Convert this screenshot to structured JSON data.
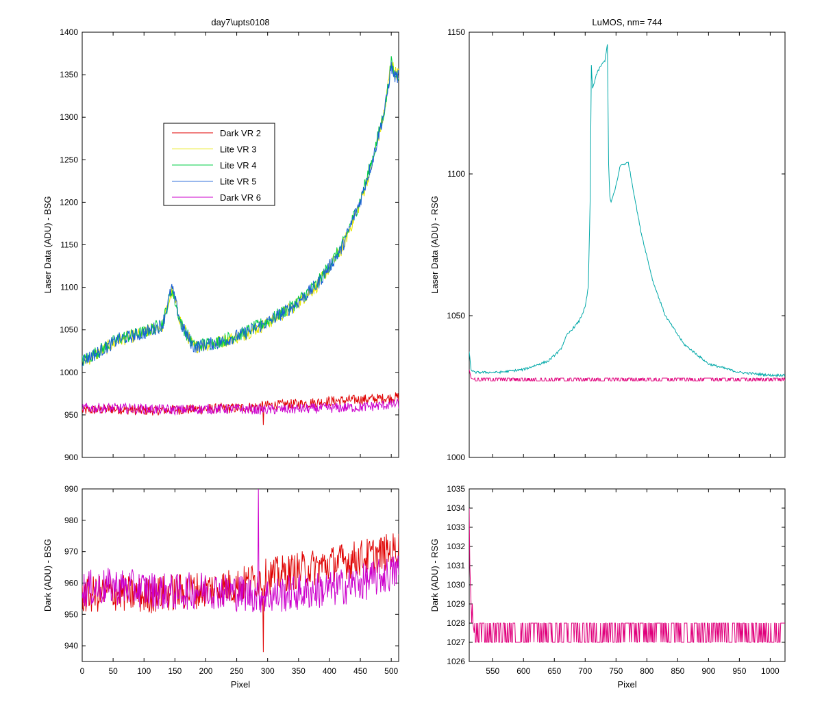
{
  "chart_data": [
    {
      "type": "line",
      "title": "day7\\upts0108",
      "xlabel": "",
      "ylabel": "Laser Data (ADU) - BSG",
      "xlim": [
        0,
        512
      ],
      "ylim": [
        900,
        1400
      ],
      "xticks": [],
      "yticks": [
        900,
        950,
        1000,
        1050,
        1100,
        1150,
        1200,
        1250,
        1300,
        1350,
        1400
      ],
      "legend": {
        "placement": "upper-left-inset",
        "entries": [
          "Dark VR 2",
          "Lite VR 3",
          "Lite VR 4",
          "Lite VR 5",
          "Dark VR 6"
        ]
      },
      "series": [
        {
          "name": "Dark VR 2",
          "color": "#e00000",
          "x": [
            0,
            50,
            100,
            150,
            200,
            250,
            300,
            350,
            400,
            450,
            500,
            512
          ],
          "y": [
            955,
            957,
            955,
            956,
            957,
            958,
            961,
            963,
            966,
            968,
            970,
            971
          ]
        },
        {
          "name": "Lite VR 3",
          "color": "#e6e600",
          "x": [
            0,
            20,
            60,
            100,
            130,
            145,
            160,
            180,
            220,
            260,
            300,
            340,
            380,
            420,
            450,
            470,
            490,
            500,
            505
          ],
          "y": [
            1012,
            1020,
            1038,
            1046,
            1055,
            1096,
            1058,
            1030,
            1035,
            1044,
            1058,
            1076,
            1102,
            1145,
            1200,
            1248,
            1310,
            1368,
            1352
          ]
        },
        {
          "name": "Lite VR 4",
          "color": "#00cc44",
          "x": [
            0,
            20,
            60,
            100,
            130,
            145,
            160,
            180,
            220,
            260,
            300,
            340,
            380,
            420,
            450,
            470,
            490,
            500,
            505
          ],
          "y": [
            1013,
            1022,
            1040,
            1047,
            1057,
            1098,
            1057,
            1031,
            1036,
            1046,
            1060,
            1078,
            1104,
            1148,
            1203,
            1252,
            1312,
            1364,
            1350
          ]
        },
        {
          "name": "Lite VR 5",
          "color": "#1a5fd6",
          "x": [
            0,
            20,
            60,
            100,
            130,
            145,
            160,
            180,
            220,
            260,
            300,
            340,
            380,
            420,
            450,
            470,
            490,
            500,
            505
          ],
          "y": [
            1014,
            1021,
            1039,
            1046,
            1056,
            1100,
            1056,
            1030,
            1035,
            1045,
            1059,
            1077,
            1103,
            1146,
            1202,
            1250,
            1311,
            1360,
            1348
          ]
        },
        {
          "name": "Dark VR 6",
          "color": "#cc00cc",
          "x": [
            0,
            50,
            100,
            150,
            200,
            250,
            300,
            350,
            400,
            450,
            500,
            512
          ],
          "y": [
            958,
            958,
            957,
            956,
            957,
            957,
            956,
            957,
            958,
            959,
            962,
            963
          ]
        }
      ]
    },
    {
      "type": "line",
      "title": "LuMOS, nm= 744",
      "xlabel": "",
      "ylabel": "Laser Data (ADU) - RSG",
      "xlim": [
        512,
        1024
      ],
      "ylim": [
        1000,
        1150
      ],
      "xticks": [],
      "yticks": [
        1000,
        1050,
        1100,
        1150
      ],
      "series": [
        {
          "name": "",
          "color": "#00a8a8",
          "x": [
            512,
            515,
            520,
            560,
            600,
            640,
            660,
            670,
            690,
            700,
            705,
            708,
            710,
            712,
            718,
            725,
            732,
            736,
            738,
            740,
            742,
            748,
            752,
            757,
            770,
            775,
            790,
            810,
            830,
            860,
            900,
            950,
            1000,
            1024
          ],
          "y": [
            1037,
            1031,
            1030,
            1030,
            1031,
            1034,
            1038,
            1043,
            1048,
            1053,
            1060,
            1090,
            1138,
            1130,
            1135,
            1138,
            1140,
            1146,
            1103,
            1092,
            1090,
            1094,
            1098,
            1103,
            1104,
            1098,
            1080,
            1062,
            1050,
            1040,
            1033,
            1030,
            1029,
            1029
          ]
        },
        {
          "name": "",
          "color": "#e0007c",
          "x": [
            512,
            515,
            520,
            600,
            700,
            800,
            900,
            1000,
            1024
          ],
          "y": [
            1031,
            1028,
            1027.5,
            1027.5,
            1027.5,
            1027.5,
            1027.5,
            1027.5,
            1027.5
          ]
        }
      ]
    },
    {
      "type": "line",
      "title": "",
      "xlabel": "Pixel",
      "ylabel": "Dark (ADU) - BSG",
      "xlim": [
        0,
        512
      ],
      "ylim": [
        935,
        990
      ],
      "xticks": [
        0,
        50,
        100,
        150,
        200,
        250,
        300,
        350,
        400,
        450,
        500
      ],
      "yticks": [
        940,
        950,
        960,
        970,
        980,
        990
      ],
      "series": [
        {
          "name": "Dark VR 2",
          "color": "#e00000",
          "x": [
            0,
            50,
            100,
            150,
            200,
            250,
            300,
            350,
            400,
            450,
            500,
            512
          ],
          "y": [
            956,
            957,
            956,
            957,
            958,
            959,
            962,
            964,
            966,
            968,
            970,
            971
          ]
        },
        {
          "name": "Dark VR 6",
          "color": "#cc00cc",
          "x": [
            0,
            50,
            100,
            150,
            200,
            250,
            300,
            350,
            400,
            450,
            500,
            512
          ],
          "y": [
            958,
            959,
            958,
            957,
            958,
            957,
            956,
            957,
            958,
            960,
            963,
            964
          ]
        }
      ]
    },
    {
      "type": "line",
      "title": "",
      "xlabel": "Pixel",
      "ylabel": "Dark (ADU) - RSG",
      "xlim": [
        512,
        1024
      ],
      "ylim": [
        1026,
        1035
      ],
      "xticks": [
        550,
        600,
        650,
        700,
        750,
        800,
        850,
        900,
        950,
        1000
      ],
      "yticks": [
        1026,
        1027,
        1028,
        1029,
        1030,
        1031,
        1032,
        1033,
        1034,
        1035
      ],
      "series": [
        {
          "name": "",
          "color": "#e0007c",
          "x": [
            512,
            513,
            514,
            515,
            516,
            517,
            518,
            520,
            1024
          ],
          "y": [
            1034,
            1031,
            1030,
            1029,
            1028,
            1029,
            1028,
            1027.5,
            1027.5
          ]
        }
      ]
    }
  ]
}
